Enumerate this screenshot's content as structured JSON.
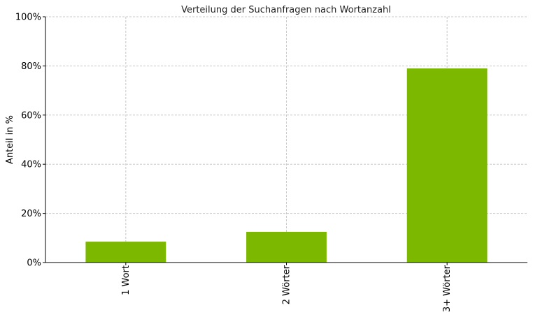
{
  "chart_data": {
    "type": "bar",
    "title": "Verteilung der Suchanfragen nach Wortanzahl",
    "xlabel": "",
    "ylabel": "Anteil in %",
    "categories": [
      "1 Wort",
      "2 Wörter",
      "3+ Wörter"
    ],
    "values": [
      8.5,
      12.5,
      79.0
    ],
    "ylim": [
      0,
      100
    ],
    "yticks": [
      "0%",
      "20%",
      "40%",
      "60%",
      "80%",
      "100%"
    ],
    "ytick_values": [
      0,
      20,
      40,
      60,
      80,
      100
    ],
    "grid": true,
    "legend": "none",
    "bar_color": "#7db800"
  }
}
